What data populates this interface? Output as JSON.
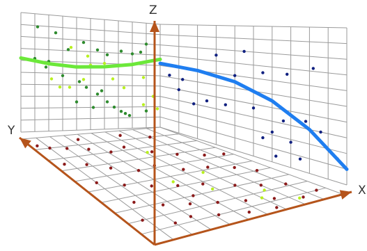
{
  "chart_data": {
    "type": "scatter",
    "title": "",
    "axes": {
      "x_label": "X",
      "y_label": "Y",
      "z_label": "Z"
    },
    "grid": true,
    "colors": {
      "axis": "#b5541b",
      "grid": "#9a9a9a",
      "dark_green_points": "#2e8b2e",
      "light_green_points": "#b8f020",
      "navy_points": "#102080",
      "dark_red_points": "#8b1a1a",
      "light_green_curve": "#6ce83a",
      "blue_curve": "#1f7ef0"
    },
    "curves": [
      {
        "plane": "back",
        "color_key": "light_green_curve",
        "points": [
          [
            0.0,
            0.62
          ],
          [
            0.2,
            0.58
          ],
          [
            0.4,
            0.56
          ],
          [
            0.6,
            0.57
          ],
          [
            0.8,
            0.6
          ],
          [
            1.0,
            0.66
          ]
        ]
      },
      {
        "plane": "back",
        "color_key": "blue_curve",
        "points": [
          [
            0.0,
            0.62
          ],
          [
            0.2,
            0.6
          ],
          [
            0.4,
            0.55
          ],
          [
            0.6,
            0.45
          ],
          [
            0.8,
            0.3
          ],
          [
            1.0,
            0.1
          ]
        ]
      }
    ],
    "points": {
      "dark_green": [
        [
          0.12,
          0.89
        ],
        [
          0.25,
          0.85
        ],
        [
          0.45,
          0.78
        ],
        [
          0.55,
          0.72
        ],
        [
          0.62,
          0.68
        ],
        [
          0.72,
          0.72
        ],
        [
          0.8,
          0.7
        ],
        [
          0.86,
          0.72
        ],
        [
          0.9,
          0.8
        ],
        [
          0.1,
          0.62
        ],
        [
          0.18,
          0.55
        ],
        [
          0.2,
          0.6
        ],
        [
          0.3,
          0.48
        ],
        [
          0.42,
          0.43
        ],
        [
          0.47,
          0.38
        ],
        [
          0.55,
          0.32
        ],
        [
          0.62,
          0.25
        ],
        [
          0.67,
          0.2
        ],
        [
          0.72,
          0.16
        ],
        [
          0.75,
          0.14
        ],
        [
          0.78,
          0.12
        ],
        [
          0.9,
          0.16
        ],
        [
          0.52,
          0.2
        ],
        [
          0.4,
          0.25
        ],
        [
          0.58,
          0.35
        ],
        [
          0.34,
          0.71
        ]
      ],
      "light_green_back": [
        [
          0.36,
          0.73
        ],
        [
          0.48,
          0.66
        ],
        [
          0.5,
          0.58
        ],
        [
          0.6,
          0.6
        ],
        [
          0.66,
          0.46
        ],
        [
          0.74,
          0.38
        ],
        [
          0.88,
          0.48
        ],
        [
          0.88,
          0.22
        ],
        [
          0.98,
          0.18
        ],
        [
          0.95,
          0.3
        ],
        [
          0.22,
          0.45
        ],
        [
          0.28,
          0.38
        ],
        [
          0.35,
          0.38
        ],
        [
          0.45,
          0.45
        ]
      ],
      "navy": [
        [
          0.3,
          0.75
        ],
        [
          0.45,
          0.8
        ],
        [
          0.55,
          0.65
        ],
        [
          0.68,
          0.66
        ],
        [
          0.4,
          0.6
        ],
        [
          0.82,
          0.72
        ],
        [
          0.78,
          0.35
        ],
        [
          0.66,
          0.32
        ],
        [
          0.5,
          0.37
        ],
        [
          0.35,
          0.35
        ],
        [
          0.25,
          0.35
        ],
        [
          0.18,
          0.3
        ],
        [
          0.1,
          0.4
        ],
        [
          0.05,
          0.52
        ],
        [
          0.12,
          0.5
        ],
        [
          0.6,
          0.22
        ],
        [
          0.7,
          0.18
        ],
        [
          0.86,
          0.3
        ],
        [
          0.55,
          0.16
        ],
        [
          0.95,
          0.15
        ],
        [
          0.75,
          0.08
        ],
        [
          0.62,
          0.05
        ]
      ],
      "light_green_floor": [
        [
          0.7,
          0.15
        ],
        [
          0.77,
          0.21
        ],
        [
          0.83,
          0.07
        ],
        [
          0.58,
          0.32
        ],
        [
          0.47,
          0.45
        ],
        [
          0.61,
          0.75
        ],
        [
          0.68,
          0.48
        ]
      ],
      "dark_red": [
        [
          0.04,
          0.93
        ],
        [
          0.1,
          0.9
        ],
        [
          0.2,
          0.88
        ],
        [
          0.32,
          0.85
        ],
        [
          0.42,
          0.8
        ],
        [
          0.54,
          0.83
        ],
        [
          0.64,
          0.75
        ],
        [
          0.74,
          0.69
        ],
        [
          0.86,
          0.64
        ],
        [
          0.96,
          0.62
        ],
        [
          0.06,
          0.75
        ],
        [
          0.18,
          0.72
        ],
        [
          0.28,
          0.66
        ],
        [
          0.4,
          0.6
        ],
        [
          0.52,
          0.62
        ],
        [
          0.62,
          0.54
        ],
        [
          0.75,
          0.52
        ],
        [
          0.86,
          0.47
        ],
        [
          0.92,
          0.4
        ],
        [
          0.1,
          0.56
        ],
        [
          0.22,
          0.5
        ],
        [
          0.34,
          0.45
        ],
        [
          0.46,
          0.41
        ],
        [
          0.58,
          0.38
        ],
        [
          0.7,
          0.31
        ],
        [
          0.8,
          0.26
        ],
        [
          0.9,
          0.22
        ],
        [
          0.15,
          0.35
        ],
        [
          0.26,
          0.28
        ],
        [
          0.38,
          0.24
        ],
        [
          0.5,
          0.2
        ],
        [
          0.62,
          0.16
        ],
        [
          0.74,
          0.12
        ],
        [
          0.85,
          0.07
        ],
        [
          0.3,
          0.14
        ],
        [
          0.42,
          0.1
        ],
        [
          0.55,
          0.06
        ],
        [
          0.68,
          0.04
        ],
        [
          0.2,
          0.12
        ],
        [
          0.95,
          0.1
        ],
        [
          0.08,
          0.2
        ],
        [
          0.45,
          0.3
        ],
        [
          0.65,
          0.95
        ],
        [
          0.35,
          0.95
        ],
        [
          0.8,
          0.9
        ]
      ]
    }
  }
}
